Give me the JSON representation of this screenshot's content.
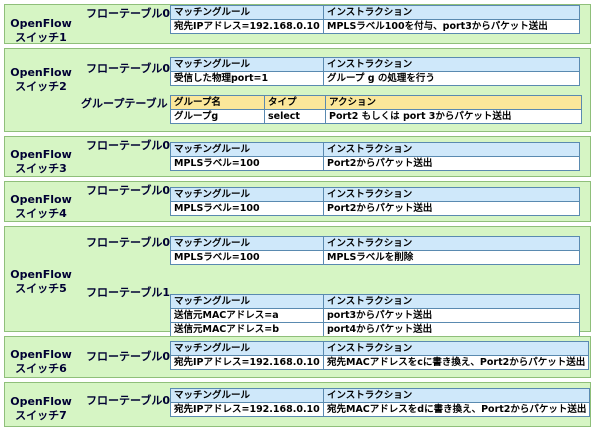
{
  "colors": {
    "panel_bg": "#d6f5c4",
    "table_header": "#cfe8fa",
    "group_header": "#fbe79a",
    "border": "#5a8ab0"
  },
  "headers": {
    "matching_rule": "マッチングルール",
    "instruction": "インストラクション",
    "group_name": "グループ名",
    "type": "タイプ",
    "action": "アクション"
  },
  "switches": [
    {
      "name": "OpenFlow\nスイッチ1",
      "tables": [
        {
          "label": "フローテーブル0",
          "rows": [
            [
              "宛先IPアドレス=192.168.0.10",
              "MPLSラベル100を付与、port3からパケット送出"
            ]
          ]
        }
      ]
    },
    {
      "name": "OpenFlow\nスイッチ2",
      "tables": [
        {
          "label": "フローテーブル0",
          "rows": [
            [
              "受信した物理port=1",
              "グループ g の処理を行う"
            ]
          ]
        }
      ],
      "group_table": {
        "label": "グループテーブル",
        "rows": [
          [
            "グループg",
            "select",
            "Port2 もしくは port 3からパケット送出"
          ]
        ]
      }
    },
    {
      "name": "OpenFlow\nスイッチ3",
      "tables": [
        {
          "label": "フローテーブル0",
          "rows": [
            [
              "MPLSラベル=100",
              "Port2からパケット送出"
            ]
          ]
        }
      ]
    },
    {
      "name": "OpenFlow\nスイッチ4",
      "tables": [
        {
          "label": "フローテーブル0",
          "rows": [
            [
              "MPLSラベル=100",
              "Port2からパケット送出"
            ]
          ]
        }
      ]
    },
    {
      "name": "OpenFlow\nスイッチ5",
      "tables": [
        {
          "label": "フローテーブル0",
          "rows": [
            [
              "MPLSラベル=100",
              "MPLSラベルを削除"
            ]
          ]
        },
        {
          "label": "フローテーブル1",
          "rows": [
            [
              "送信元MACアドレス=a",
              "port3からパケット送出"
            ],
            [
              "送信元MACアドレス=b",
              "port4からパケット送出"
            ]
          ]
        }
      ]
    },
    {
      "name": "OpenFlow\nスイッチ6",
      "tables": [
        {
          "label": "フローテーブル0",
          "rows": [
            [
              "宛先IPアドレス=192.168.0.10",
              "宛先MACアドレスをcに書き換え、Port2からパケット送出"
            ]
          ]
        }
      ]
    },
    {
      "name": "OpenFlow\nスイッチ7",
      "tables": [
        {
          "label": "フローテーブル0",
          "rows": [
            [
              "宛先IPアドレス=192.168.0.10",
              "宛先MACアドレスをdに書き換え、Port2からパケット送出"
            ]
          ]
        }
      ]
    }
  ]
}
